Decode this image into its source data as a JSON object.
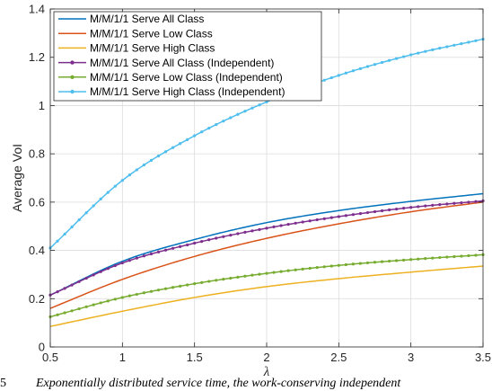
{
  "caption": {
    "number": "5",
    "text": "Exponentially distributed service time, the work-conserving independent"
  },
  "chart_data": {
    "type": "line",
    "title": "",
    "xlabel": "λ",
    "ylabel": "Average VoI",
    "xlim": [
      0.5,
      3.5
    ],
    "ylim": [
      0,
      1.4
    ],
    "xticks": [
      0.5,
      1,
      1.5,
      2,
      2.5,
      3,
      3.5
    ],
    "yticks": [
      0,
      0.2,
      0.4,
      0.6,
      0.8,
      1,
      1.2,
      1.4
    ],
    "xtick_labels": [
      "0.5",
      "1",
      "1.5",
      "2",
      "2.5",
      "3",
      "3.5"
    ],
    "ytick_labels": [
      "0",
      "0.2",
      "0.4",
      "0.6",
      "0.8",
      "1",
      "1.2",
      "1.4"
    ],
    "grid": true,
    "legend_position": "top-left",
    "x": [
      0.5,
      1.0,
      1.5,
      2.0,
      2.5,
      3.0,
      3.5
    ],
    "series": [
      {
        "name": "M/M/1/1 Serve All Class",
        "color": "#0072BD",
        "marker": "none",
        "values": [
          0.215,
          0.355,
          0.445,
          0.515,
          0.565,
          0.603,
          0.635
        ]
      },
      {
        "name": "M/M/1/1 Serve Low Class",
        "color": "#D95319",
        "marker": "none",
        "values": [
          0.16,
          0.28,
          0.375,
          0.45,
          0.51,
          0.56,
          0.6
        ]
      },
      {
        "name": "M/M/1/1 Serve High Class",
        "color": "#EDB120",
        "marker": "none",
        "values": [
          0.085,
          0.148,
          0.205,
          0.25,
          0.283,
          0.31,
          0.335
        ]
      },
      {
        "name": "M/M/1/1 Serve All Class (Independent)",
        "color": "#7E2F8E",
        "marker": "dot",
        "values": [
          0.215,
          0.348,
          0.43,
          0.492,
          0.54,
          0.578,
          0.605
        ]
      },
      {
        "name": "M/M/1/1 Serve Low Class (Independent)",
        "color": "#77AC30",
        "marker": "dot",
        "values": [
          0.125,
          0.205,
          0.262,
          0.305,
          0.338,
          0.362,
          0.382
        ]
      },
      {
        "name": "M/M/1/1 Serve High Class (Independent)",
        "color": "#4DBEEE",
        "marker": "dot",
        "values": [
          0.41,
          0.69,
          0.875,
          1.015,
          1.125,
          1.21,
          1.275
        ]
      }
    ]
  }
}
